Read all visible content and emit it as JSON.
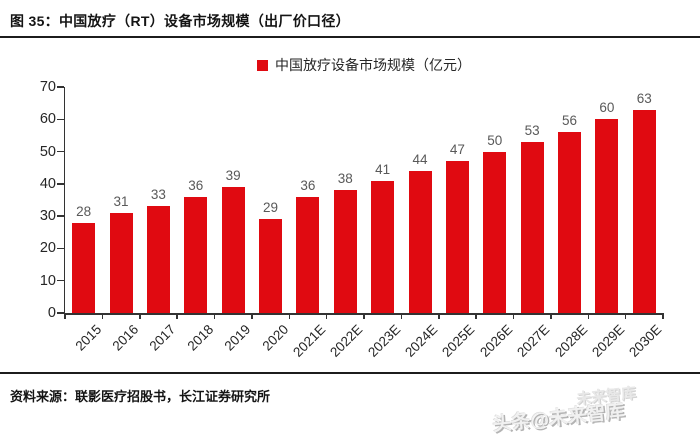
{
  "header": {
    "title": "图 35：中国放疗（RT）设备市场规模（出厂价口径）"
  },
  "legend": {
    "label": "中国放疗设备市场规模（亿元）"
  },
  "chart_data": {
    "type": "bar",
    "title": "中国放疗设备市场规模（亿元）",
    "categories": [
      "2015",
      "2016",
      "2017",
      "2018",
      "2019",
      "2020",
      "2021E",
      "2022E",
      "2023E",
      "2024E",
      "2025E",
      "2026E",
      "2027E",
      "2028E",
      "2029E",
      "2030E"
    ],
    "values": [
      28,
      31,
      33,
      36,
      39,
      29,
      36,
      38,
      41,
      44,
      47,
      50,
      53,
      56,
      60,
      63
    ],
    "unit": "亿元",
    "xlabel": "",
    "ylabel": "",
    "ylim": [
      0,
      70
    ],
    "yticks": [
      0,
      10,
      20,
      30,
      40,
      50,
      60,
      70
    ],
    "grid": false,
    "legend_position": "top-center",
    "bar_color": "#e00a11",
    "value_label_color": "#595959",
    "axis_color": "#333333",
    "tick_label_color": "#262626"
  },
  "footer": {
    "source": "资料来源：联影医疗招股书，长江证券研究所",
    "watermark": "头条@未来智库",
    "watermark_ghost": "未来智库"
  }
}
